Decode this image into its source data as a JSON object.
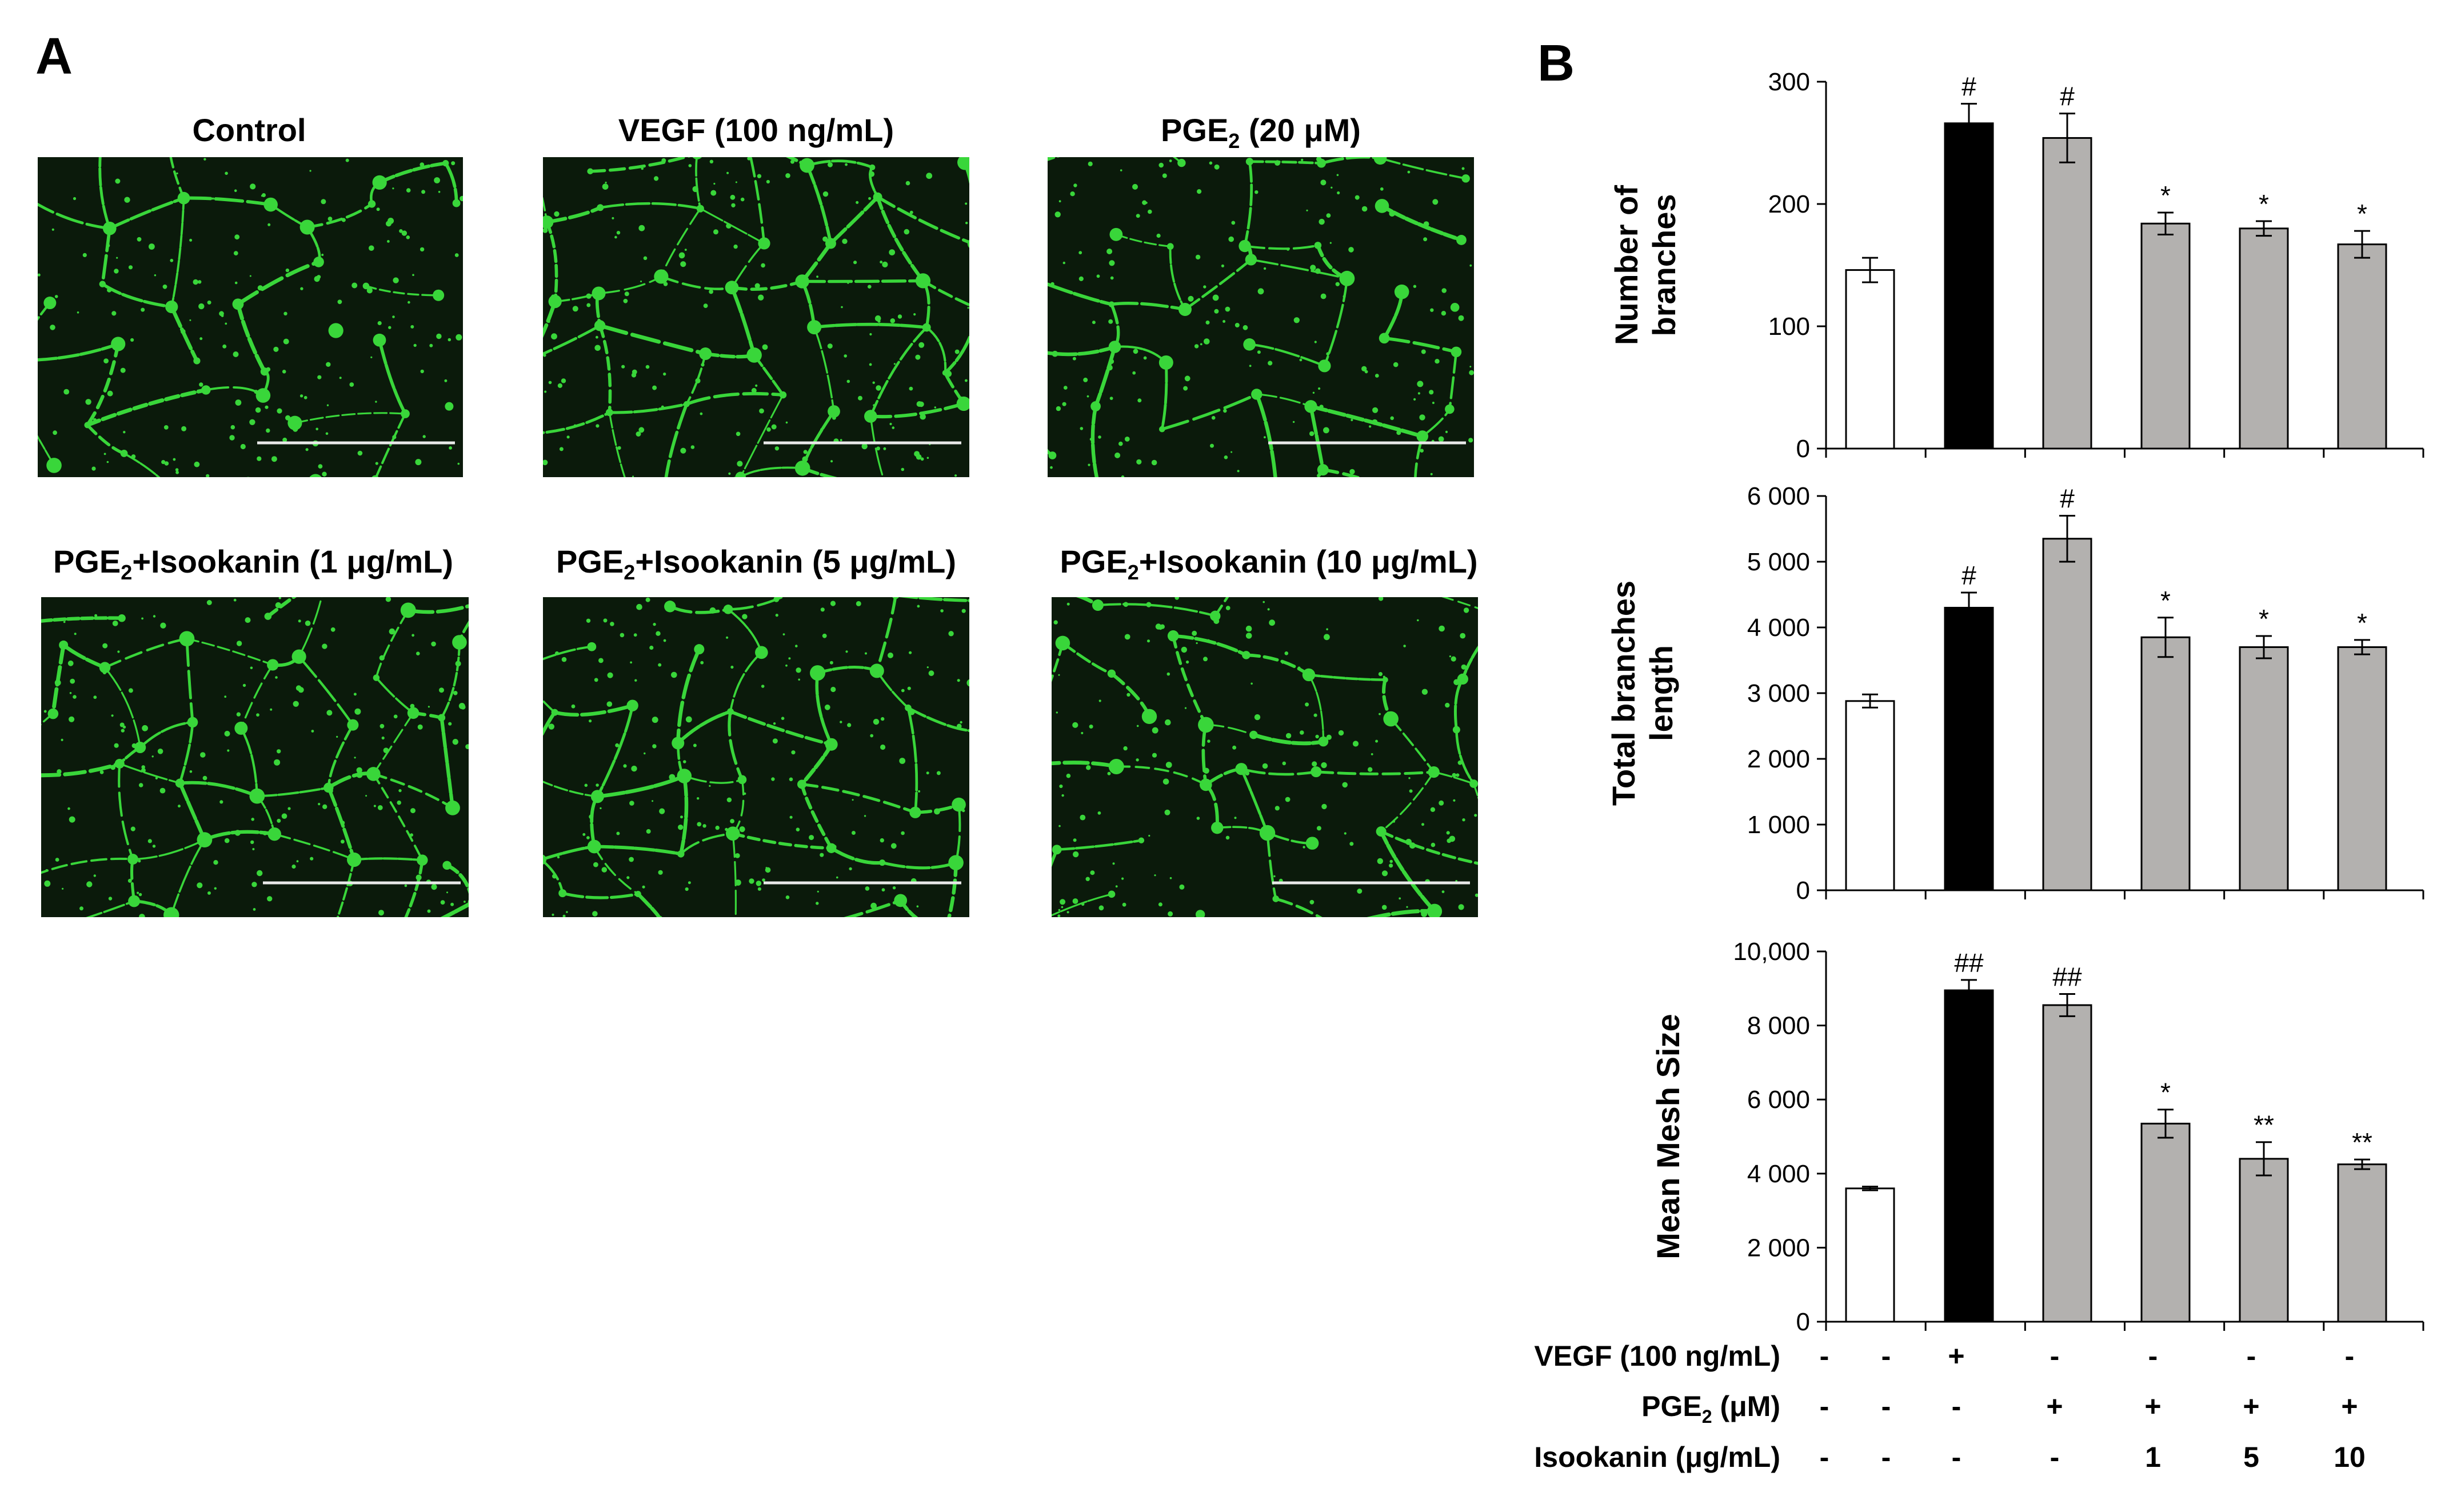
{
  "panels": {
    "a": "A",
    "b": "B"
  },
  "micrographs": [
    {
      "title_main": "Control",
      "title_sub": "",
      "title_rest": ""
    },
    {
      "title_main": "VEGF (100 ng/mL)",
      "title_sub": "",
      "title_rest": ""
    },
    {
      "title_main": "PGE",
      "title_sub": "2",
      "title_rest": " (20 μM)"
    },
    {
      "title_main": "PGE",
      "title_sub": "2",
      "title_rest": "+Isookanin (1 μg/mL)"
    },
    {
      "title_main": "PGE",
      "title_sub": "2",
      "title_rest": "+Isookanin (5 μg/mL)"
    },
    {
      "title_main": "PGE",
      "title_sub": "2",
      "title_rest": "+Isookanin (10 μg/mL)"
    }
  ],
  "colors": {
    "micrograph_bg": "#0b1a0b",
    "network": "#39d63a",
    "scale_bar": "#e8e8e8",
    "control_bar": "#ffffff",
    "vegf_bar": "#000000",
    "treated_bar": "#b3b1af"
  },
  "chart_data": [
    {
      "type": "bar",
      "ylabel": [
        "Number of",
        "branches"
      ],
      "ylim": [
        0,
        300
      ],
      "yticks": [
        0,
        100,
        200,
        300
      ],
      "ytick_labels": [
        "0",
        "100",
        "200",
        "300"
      ],
      "values": [
        146,
        266,
        254,
        184,
        180,
        167
      ],
      "errors": [
        10,
        16,
        20,
        9,
        6,
        11
      ],
      "significance": [
        "",
        "#",
        "#",
        "*",
        "*",
        "*"
      ],
      "bar_colors": [
        "white",
        "black",
        "gray",
        "gray",
        "gray",
        "gray"
      ]
    },
    {
      "type": "bar",
      "ylabel": [
        "Total branches",
        "length"
      ],
      "ylim": [
        0,
        6000
      ],
      "yticks": [
        0,
        1000,
        2000,
        3000,
        4000,
        5000,
        6000
      ],
      "ytick_labels": [
        "0",
        "1 000",
        "2 000",
        "3 000",
        "4 000",
        "5 000",
        "6 000"
      ],
      "values": [
        2880,
        4300,
        5350,
        3850,
        3700,
        3700
      ],
      "errors": [
        100,
        230,
        350,
        300,
        170,
        110
      ],
      "significance": [
        "",
        "#",
        "#",
        "*",
        "*",
        "*"
      ],
      "bar_colors": [
        "white",
        "black",
        "gray",
        "gray",
        "gray",
        "gray"
      ]
    },
    {
      "type": "bar",
      "ylabel": [
        "Mean Mesh Size"
      ],
      "ylim": [
        0,
        10000
      ],
      "yticks": [
        0,
        2000,
        4000,
        6000,
        8000,
        10000
      ],
      "ytick_labels": [
        "0",
        "2 000",
        "4 000",
        "6 000",
        "8 000",
        "10,000"
      ],
      "values": [
        3600,
        8950,
        8550,
        5350,
        4400,
        4250
      ],
      "errors": [
        50,
        280,
        300,
        380,
        450,
        130
      ],
      "significance": [
        "",
        "##",
        "##",
        "*",
        "**",
        "**"
      ],
      "bar_colors": [
        "white",
        "black",
        "gray",
        "gray",
        "gray",
        "gray"
      ]
    }
  ],
  "treatment_table": {
    "rows": [
      {
        "label_main": "VEGF (100 ng/mL)",
        "label_sub": "",
        "label_rest": "",
        "cells": [
          "-",
          "+",
          "-",
          "-",
          "-",
          "-"
        ]
      },
      {
        "label_main": "PGE",
        "label_sub": "2",
        "label_rest": " (μM)",
        "cells": [
          "-",
          "-",
          "+",
          "+",
          "+",
          "+"
        ]
      },
      {
        "label_main": "Isookanin (μg/mL)",
        "label_sub": "",
        "label_rest": "",
        "cells": [
          "-",
          "-",
          "-",
          "1",
          "5",
          "10"
        ]
      }
    ]
  }
}
